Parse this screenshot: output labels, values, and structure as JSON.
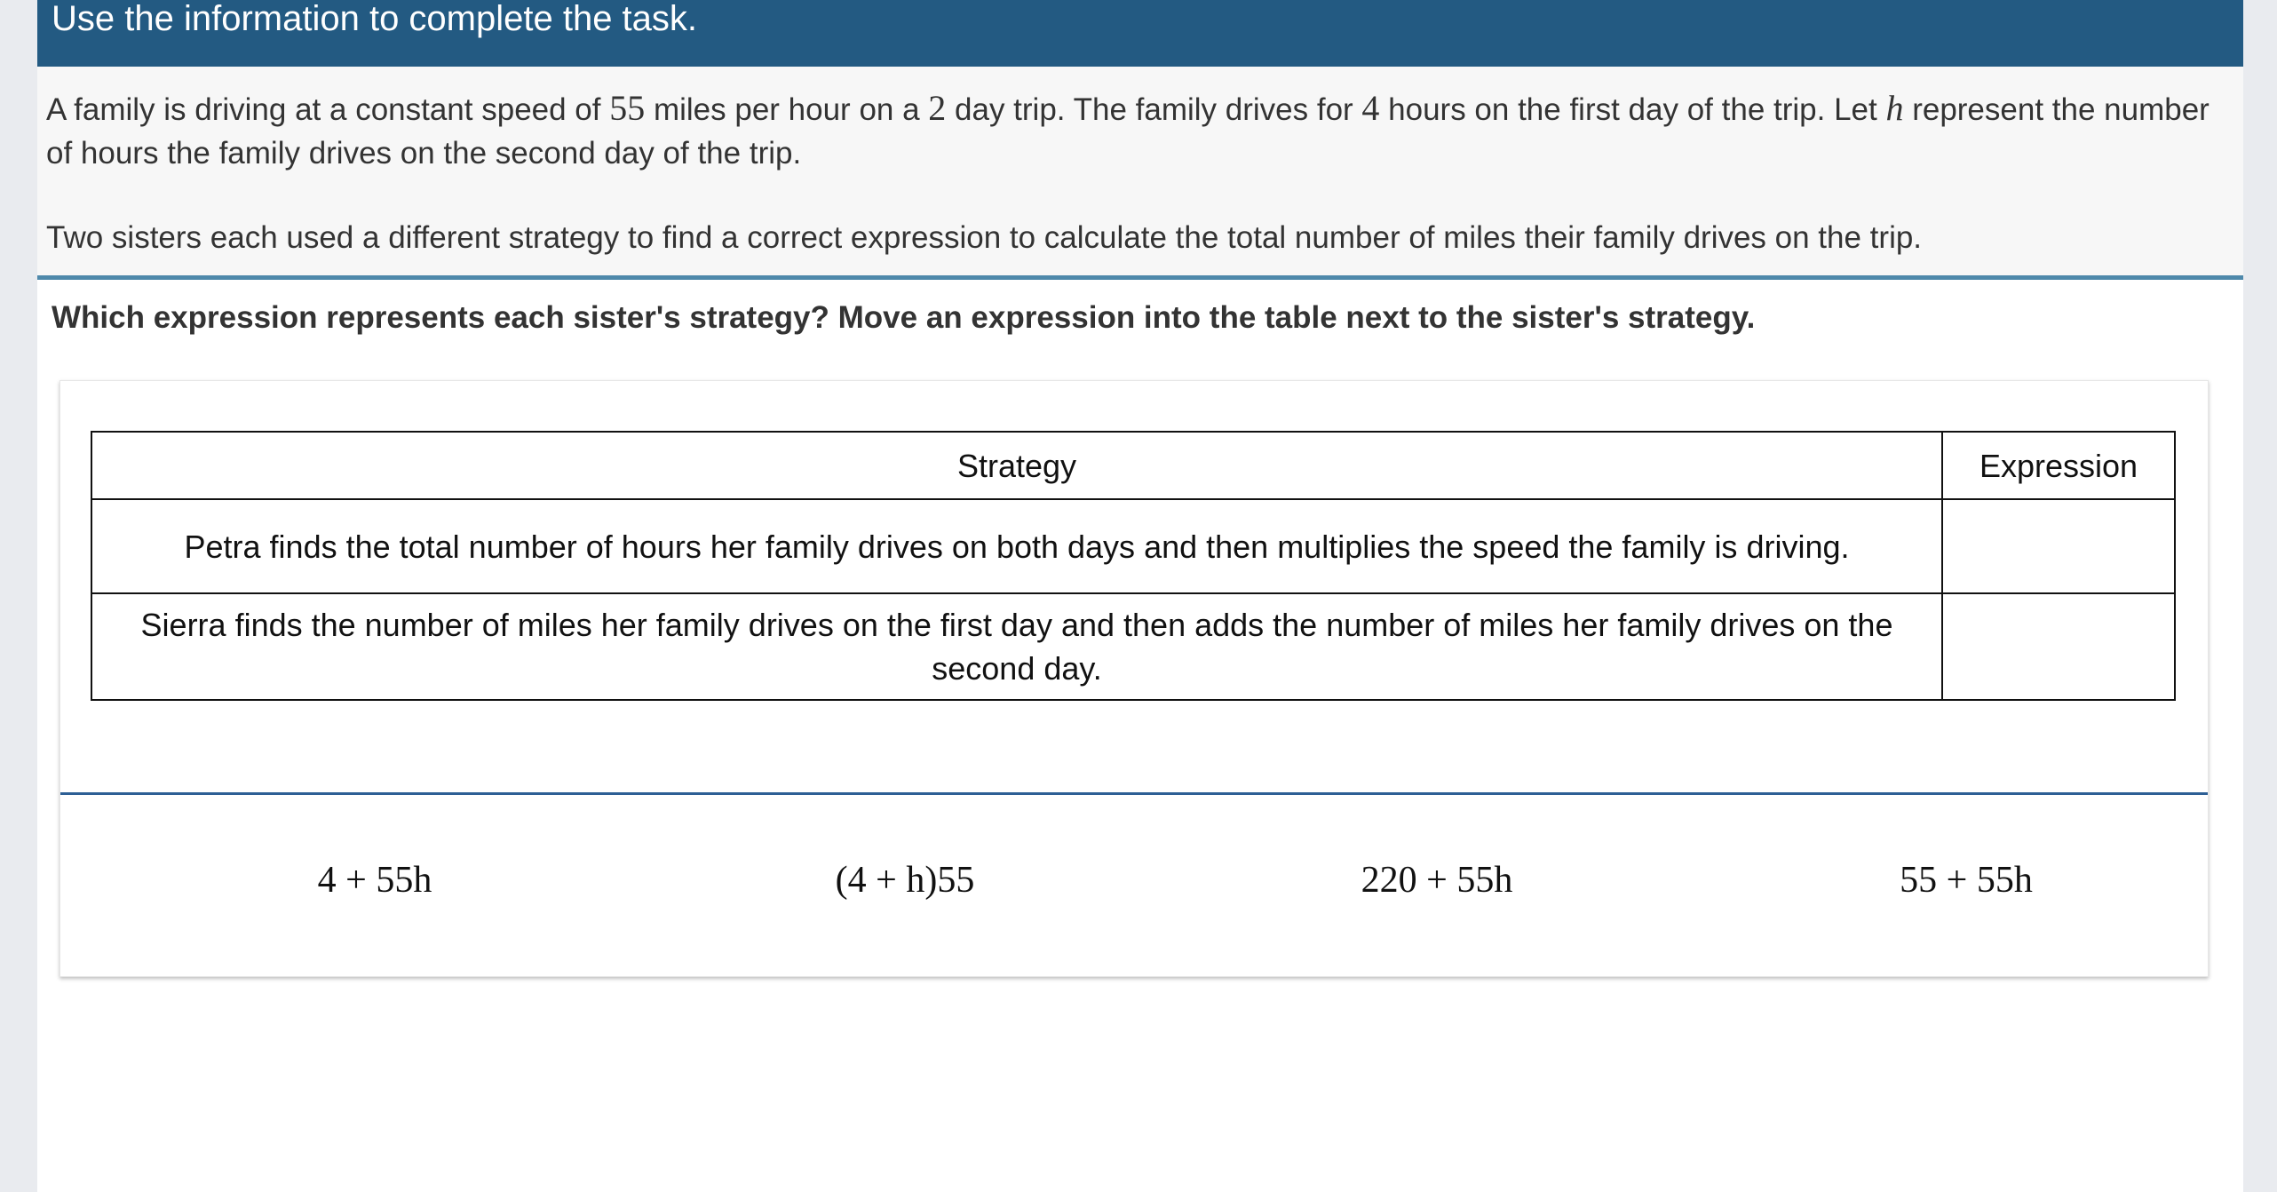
{
  "header": {
    "title": "Use the information to complete the task."
  },
  "info": {
    "p1": {
      "a": "A family is driving at a constant speed of ",
      "speed": "55",
      "b": " miles per hour on a ",
      "days": "2",
      "c": " day trip. The family drives for ",
      "hours": "4",
      "d": " hours on the first day of the trip. Let ",
      "var": "h",
      "e": " represent the number of hours the family drives on the second day of the trip."
    },
    "p2": "Two sisters each used a different strategy to find a correct expression to calculate the total number of miles their family drives on the trip."
  },
  "prompt": "Which expression represents each sister's strategy? Move an expression into the table next to the sister's strategy.",
  "table": {
    "headers": [
      "Strategy",
      "Expression"
    ],
    "rows": [
      {
        "strategy": "Petra finds the total number of hours her family drives on both days and then multiplies the speed the family is driving.",
        "expression": ""
      },
      {
        "strategy": "Sierra finds the number of miles her family drives on the first day and then adds the number of miles her family drives on the second day.",
        "expression": ""
      }
    ]
  },
  "expressions": [
    "4 + 55h",
    "(4 + h)55",
    "220 + 55h",
    "55 + 55h"
  ],
  "colors": {
    "header": "#235a82",
    "accent": "#4f89ab",
    "divider": "#2d5f95"
  }
}
